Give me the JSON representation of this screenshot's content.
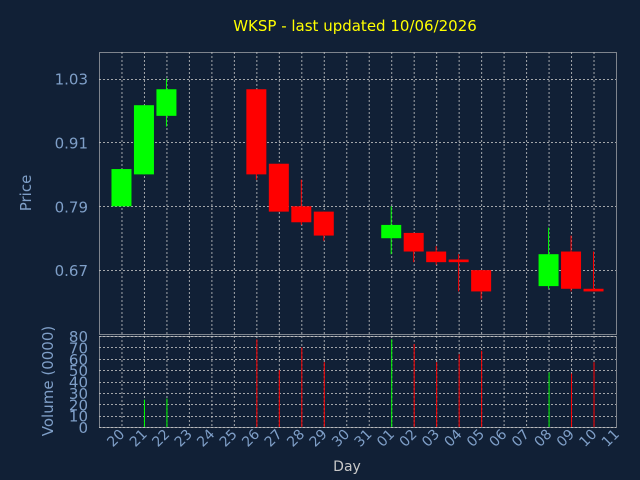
{
  "chart_data": {
    "type": "candlestick",
    "title": "WKSP - last updated 10/06/2026",
    "xlabel": "Day",
    "colors": {
      "background": "#112036",
      "grid": "#c8c8c8",
      "up": "#00ff00",
      "down": "#ff0000",
      "title": "#ffff00",
      "label": "#7f9fc8"
    },
    "x_ticks": [
      "20",
      "21",
      "22",
      "23",
      "24",
      "25",
      "26",
      "27",
      "28",
      "29",
      "30",
      "31",
      "01",
      "02",
      "03",
      "04",
      "05",
      "06",
      "07",
      "08",
      "09",
      "10",
      "11"
    ],
    "price_panel": {
      "ylabel": "Price",
      "ylim": [
        0.55,
        1.08
      ],
      "y_ticks": [
        "1.03",
        "0.91",
        "0.79",
        "0.67"
      ],
      "y_tick_values": [
        1.03,
        0.91,
        0.79,
        0.67
      ],
      "candles": [
        {
          "day": "20",
          "open": 0.79,
          "high": 0.86,
          "low": 0.79,
          "close": 0.86
        },
        {
          "day": "21",
          "open": 0.85,
          "high": 0.98,
          "low": 0.85,
          "close": 0.98
        },
        {
          "day": "22",
          "open": 0.96,
          "high": 1.03,
          "low": 0.94,
          "close": 1.01
        },
        {
          "day": "26",
          "open": 1.01,
          "high": 1.01,
          "low": 0.84,
          "close": 0.85
        },
        {
          "day": "27",
          "open": 0.87,
          "high": 0.87,
          "low": 0.78,
          "close": 0.78
        },
        {
          "day": "28",
          "open": 0.79,
          "high": 0.84,
          "low": 0.755,
          "close": 0.76
        },
        {
          "day": "29",
          "open": 0.78,
          "high": 0.78,
          "low": 0.725,
          "close": 0.735
        },
        {
          "day": "01",
          "open": 0.73,
          "high": 0.79,
          "low": 0.7,
          "close": 0.755
        },
        {
          "day": "02",
          "open": 0.74,
          "high": 0.74,
          "low": 0.685,
          "close": 0.705
        },
        {
          "day": "03",
          "open": 0.705,
          "high": 0.715,
          "low": 0.68,
          "close": 0.685
        },
        {
          "day": "04",
          "open": 0.69,
          "high": 0.7,
          "low": 0.63,
          "close": 0.685
        },
        {
          "day": "05",
          "open": 0.67,
          "high": 0.67,
          "low": 0.615,
          "close": 0.63
        },
        {
          "day": "08",
          "open": 0.64,
          "high": 0.75,
          "low": 0.635,
          "close": 0.7
        },
        {
          "day": "09",
          "open": 0.705,
          "high": 0.735,
          "low": 0.63,
          "close": 0.635
        },
        {
          "day": "10",
          "open": 0.635,
          "high": 0.705,
          "low": 0.63,
          "close": 0.63
        }
      ]
    },
    "volume_panel": {
      "ylabel": "Volume (0000)",
      "ylim": [
        0,
        80
      ],
      "y_ticks": [
        "80",
        "70",
        "60",
        "50",
        "40",
        "30",
        "20",
        "10",
        "0"
      ],
      "y_tick_values": [
        80,
        70,
        60,
        50,
        40,
        30,
        20,
        10,
        0
      ],
      "bars": [
        {
          "day": "21",
          "value": 24,
          "dir": "up"
        },
        {
          "day": "22",
          "value": 25,
          "dir": "up"
        },
        {
          "day": "26",
          "value": 77,
          "dir": "down"
        },
        {
          "day": "27",
          "value": 50,
          "dir": "down"
        },
        {
          "day": "28",
          "value": 70,
          "dir": "down"
        },
        {
          "day": "29",
          "value": 57,
          "dir": "down"
        },
        {
          "day": "01",
          "value": 77,
          "dir": "up"
        },
        {
          "day": "02",
          "value": 73,
          "dir": "down"
        },
        {
          "day": "03",
          "value": 57,
          "dir": "down"
        },
        {
          "day": "04",
          "value": 64,
          "dir": "down"
        },
        {
          "day": "05",
          "value": 67,
          "dir": "down"
        },
        {
          "day": "08",
          "value": 48,
          "dir": "up"
        },
        {
          "day": "09",
          "value": 47,
          "dir": "down"
        },
        {
          "day": "10",
          "value": 57,
          "dir": "down"
        }
      ]
    }
  }
}
